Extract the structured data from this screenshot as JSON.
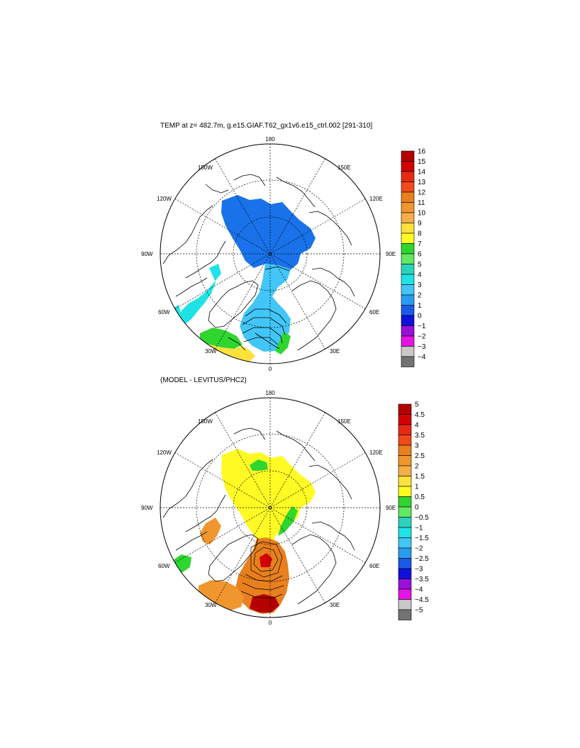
{
  "panels": [
    {
      "title": "TEMP at z= 482.7m, g.e15.GIAF.T62_gx1v6.e15_ctrl.002 [291-310]",
      "lon_labels": [
        "180",
        "150E",
        "120E",
        "90E",
        "60E",
        "30E",
        "0",
        "30W",
        "60W",
        "90W",
        "120W",
        "150W"
      ],
      "colorbar": {
        "labels": [
          "16",
          "15",
          "14",
          "13",
          "12",
          "11",
          "10",
          "9",
          "8",
          "7",
          "6",
          "5",
          "4",
          "3",
          "2",
          "1",
          "0",
          "−1",
          "−2",
          "−3",
          "−4"
        ],
        "colors": [
          "#b40000",
          "#d20000",
          "#e82a14",
          "#f04a1a",
          "#e8801e",
          "#f0962e",
          "#f5ad48",
          "#fde23c",
          "#fffa24",
          "#2fd62f",
          "#62e862",
          "#2cd2bc",
          "#20e2e6",
          "#42c6f8",
          "#2a9cf0",
          "#1a5ae6",
          "#1010dc",
          "#9a10d8",
          "#e414e4",
          "#c8c8c8",
          "#727272"
        ]
      }
    },
    {
      "title": "(MODEL - LEVITUS/PHC2)",
      "lon_labels": [
        "180",
        "150E",
        "120E",
        "90E",
        "60E",
        "30E",
        "0",
        "30W",
        "60W",
        "90W",
        "120W",
        "150W"
      ],
      "colorbar": {
        "labels": [
          "5",
          "4.5",
          "4",
          "3.5",
          "3",
          "2.5",
          "2",
          "1.5",
          "1",
          "0.5",
          "0",
          "−0.5",
          "−1",
          "−1.5",
          "−2",
          "−2.5",
          "−3",
          "−3.5",
          "−4",
          "−4.5",
          "−5"
        ],
        "colors": [
          "#b40000",
          "#d20000",
          "#e82a14",
          "#f04a1a",
          "#e8801e",
          "#f0962e",
          "#f5ad48",
          "#fde23c",
          "#fffa24",
          "#2fd62f",
          "#62e862",
          "#2cd2bc",
          "#20e2e6",
          "#42c6f8",
          "#2a9cf0",
          "#1a5ae6",
          "#1010dc",
          "#9a10d8",
          "#e414e4",
          "#c8c8c8",
          "#727272"
        ]
      }
    }
  ]
}
